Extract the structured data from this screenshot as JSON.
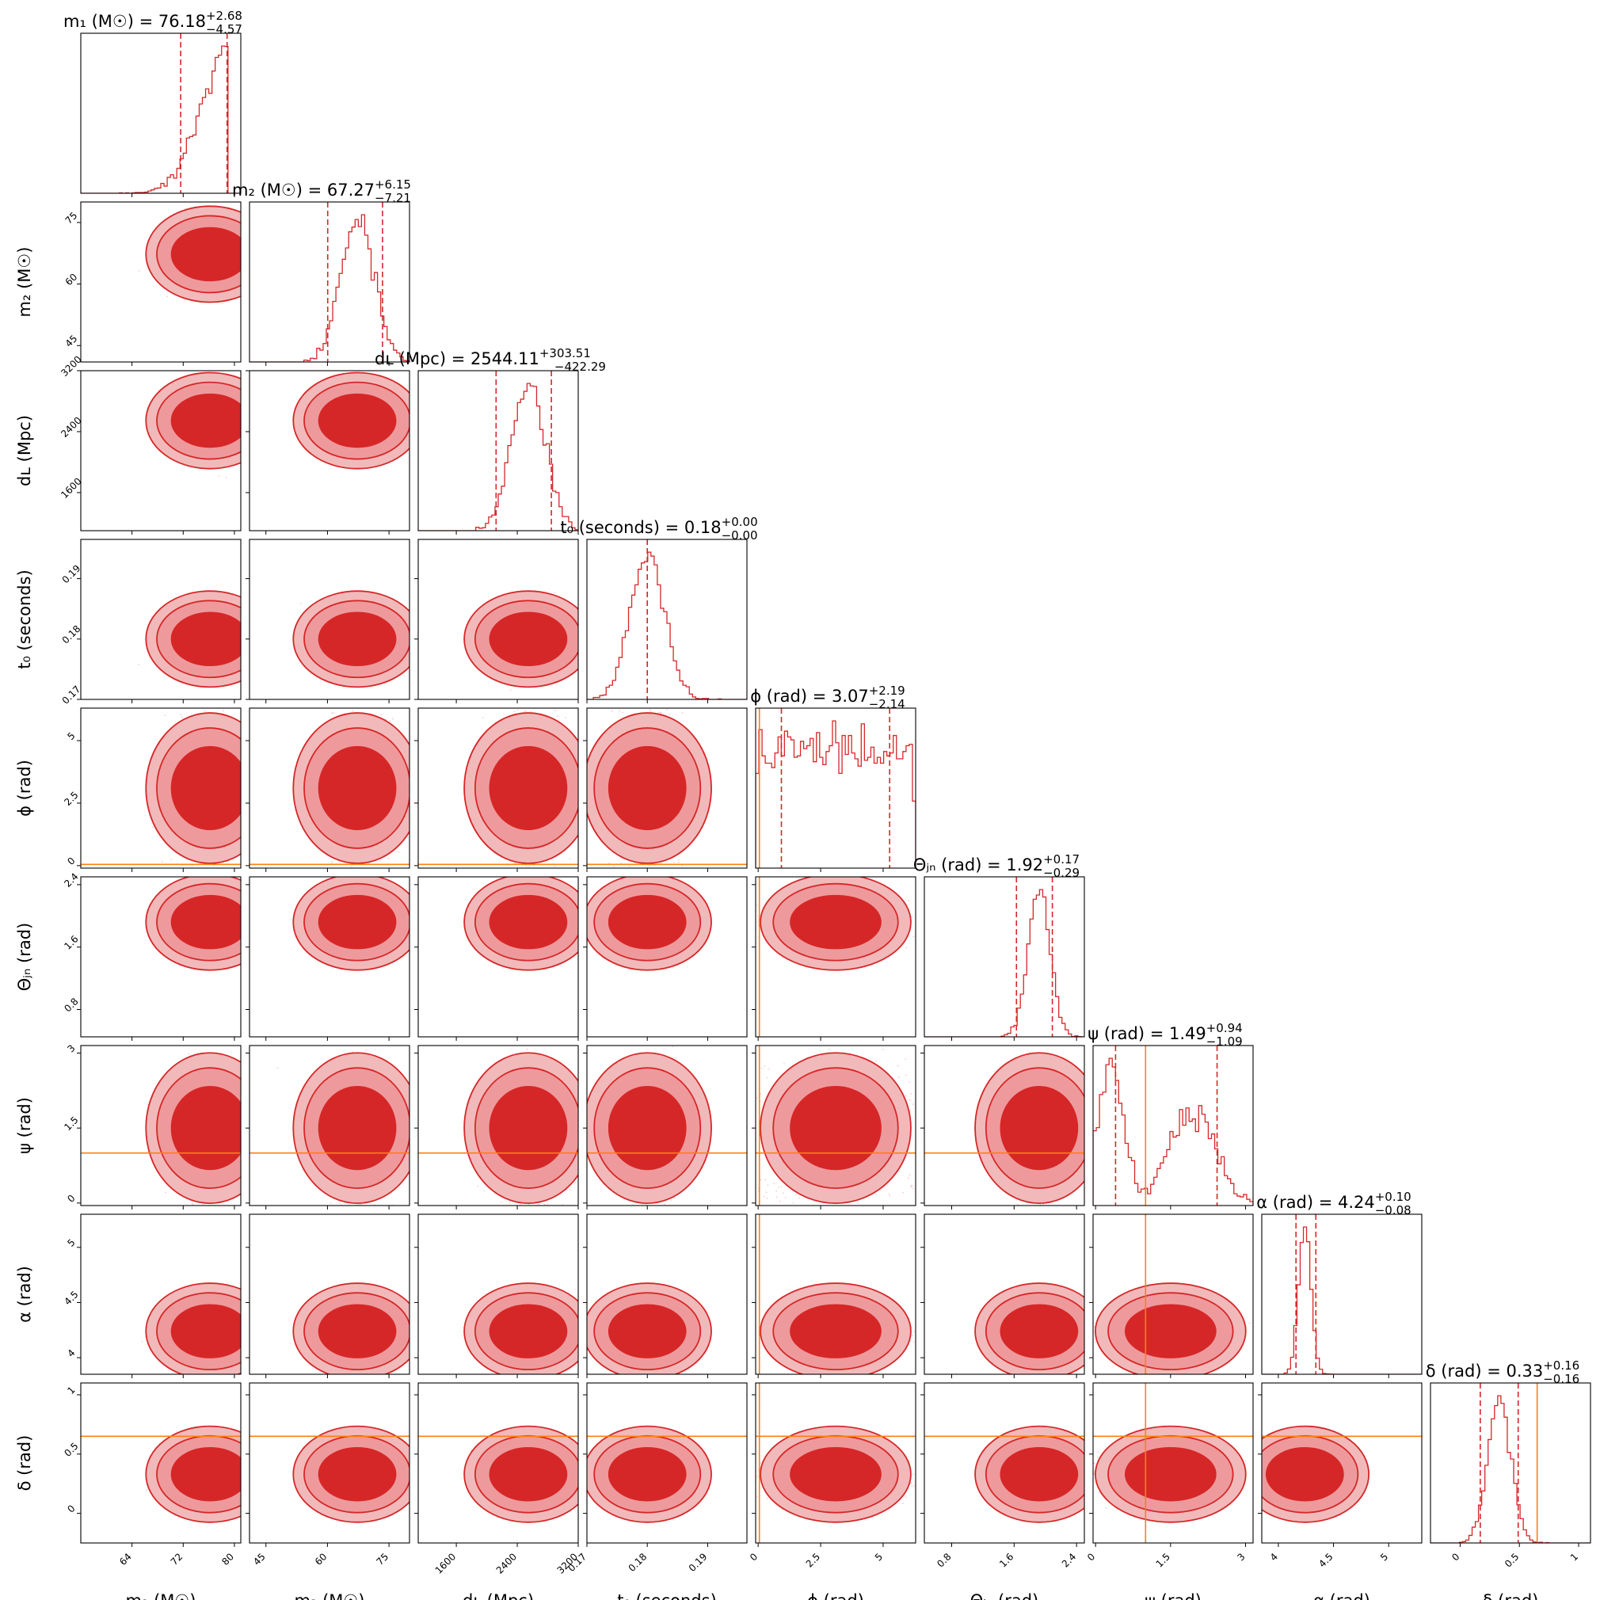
{
  "chart_data": {
    "type": "corner",
    "description_parameters_order": [
      "m1",
      "m2",
      "dL",
      "t0",
      "phi",
      "theta_jn",
      "psi",
      "alpha",
      "delta"
    ],
    "parameters": [
      {
        "key": "m1",
        "label": "m₁ (M☉)",
        "range": [
          56,
          81
        ],
        "ticks": [
          64,
          72,
          80
        ],
        "median": 76.18,
        "plus": 2.68,
        "minus": 4.57,
        "injection": null,
        "title_prefix": "m₁ (M☉) = 76.18",
        "title_sup": "+2.68",
        "title_sub": "−4.57"
      },
      {
        "key": "m2",
        "label": "m₂ (M☉)",
        "range": [
          41,
          80
        ],
        "ticks": [
          45,
          60,
          75
        ],
        "median": 67.27,
        "plus": 6.15,
        "minus": 7.21,
        "injection": null,
        "title_prefix": "m₂ (M☉) = 67.27",
        "title_sup": "+6.15",
        "title_sub": "−7.21"
      },
      {
        "key": "dL",
        "label": "dʟ (Mpc)",
        "range": [
          1100,
          3200
        ],
        "ticks": [
          1600,
          2400,
          3200
        ],
        "median": 2544.11,
        "plus": 303.51,
        "minus": 422.29,
        "injection": null,
        "title_prefix": "dʟ (Mpc) = 2544.11",
        "title_sup": "+303.51",
        "title_sub": "−422.29"
      },
      {
        "key": "t0",
        "label": "t₀ (seconds)",
        "range": [
          0.17,
          0.1965
        ],
        "ticks": [
          0.17,
          0.18,
          0.19
        ],
        "median": 0.18,
        "plus": 0.0,
        "minus": 0.0,
        "injection": null,
        "title_prefix": "t₀ (seconds) = 0.18",
        "title_sup": "+0.00",
        "title_sub": "−0.00"
      },
      {
        "key": "phi",
        "label": "ϕ (rad)",
        "range": [
          -0.1,
          6.3
        ],
        "ticks": [
          0.0,
          2.5,
          5.0
        ],
        "median": 3.07,
        "plus": 2.19,
        "minus": 2.14,
        "injection": 0.05,
        "title_prefix": "ϕ (rad) = 3.07",
        "title_sup": "+2.19",
        "title_sub": "−2.14"
      },
      {
        "key": "theta_jn",
        "label": "Θⱼₙ (rad)",
        "range": [
          0.45,
          2.5
        ],
        "ticks": [
          0.8,
          1.6,
          2.4
        ],
        "median": 1.92,
        "plus": 0.17,
        "minus": 0.29,
        "injection": null,
        "title_prefix": "Θⱼₙ (rad) = 1.92",
        "title_sup": "+0.17",
        "title_sub": "−0.29"
      },
      {
        "key": "psi",
        "label": "ψ (rad)",
        "range": [
          -0.05,
          3.15
        ],
        "ticks": [
          0.0,
          1.5,
          3.0
        ],
        "median": 1.49,
        "plus": 0.94,
        "minus": 1.09,
        "injection": 1.0,
        "title_prefix": "ψ (rad) = 1.49",
        "title_sup": "+0.94",
        "title_sub": "−1.09"
      },
      {
        "key": "alpha",
        "label": "α (rad)",
        "range": [
          3.85,
          5.3
        ],
        "ticks": [
          4.0,
          4.5,
          5.0
        ],
        "median": 4.24,
        "plus": 0.1,
        "minus": 0.08,
        "injection": null,
        "title_prefix": "α (rad) = 4.24",
        "title_sup": "+0.10",
        "title_sub": "−0.08"
      },
      {
        "key": "delta",
        "label": "δ (rad)",
        "range": [
          -0.25,
          1.1
        ],
        "ticks": [
          0.0,
          0.5,
          1.0
        ],
        "median": 0.33,
        "plus": 0.16,
        "minus": 0.16,
        "injection": 0.65,
        "title_prefix": "δ (rad) = 0.33",
        "title_sup": "+0.16",
        "title_sub": "−0.16"
      }
    ],
    "colors": {
      "posterior": "#d62728",
      "posterior_light": "#ee9a9c",
      "injection": "#ff7f0e",
      "axes": "#000000"
    },
    "axis_labels": {
      "m1": "m₁ (M☉)",
      "m2": "m₂ (M☉)",
      "dL": "dʟ (Mpc)",
      "t0": "t₀ (seconds)",
      "phi": "ϕ (rad)",
      "theta_jn": "Θⱼₙ (rad)",
      "psi": "ψ (rad)",
      "alpha": "α (rad)",
      "delta": "δ (rad)"
    },
    "credible_levels": [
      "90%",
      "50%"
    ],
    "grid": false
  }
}
